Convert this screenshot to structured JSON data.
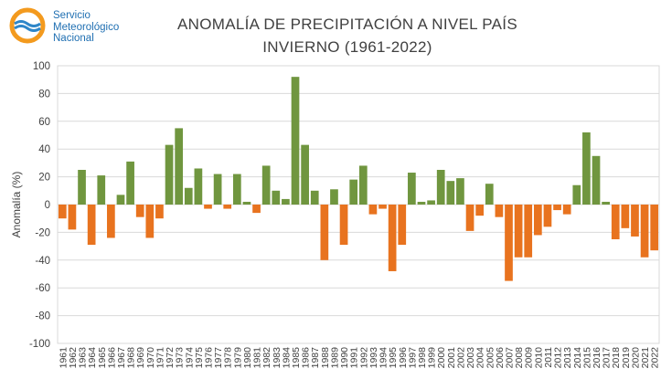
{
  "logo": {
    "line1": "Servicio",
    "line2": "Meteorológico",
    "line3": "Nacional",
    "icon": "smn-logo-icon",
    "colors": {
      "orange": "#f39a1e",
      "blue": "#2e86c8"
    }
  },
  "chart_data": {
    "type": "bar",
    "title_line1": "ANOMALÍA DE PRECIPITACIÓN A NIVEL PAÍS",
    "title_line2": "INVIERNO (1961-2022)",
    "ylabel": "Anomalía (%)",
    "xlabel": "",
    "ylim": [
      -100,
      100
    ],
    "yticks": [
      100,
      80,
      60,
      40,
      20,
      0,
      -20,
      -40,
      -60,
      -80,
      -100
    ],
    "grid": true,
    "legend": "none",
    "colors": {
      "positive": "#70963f",
      "negative": "#e8731f",
      "grid": "#d9d9d9"
    },
    "categories": [
      "1961",
      "1962",
      "1963",
      "1964",
      "1965",
      "1966",
      "1967",
      "1968",
      "1969",
      "1970",
      "1971",
      "1972",
      "1973",
      "1974",
      "1975",
      "1976",
      "1977",
      "1978",
      "1979",
      "1980",
      "1981",
      "1982",
      "1983",
      "1984",
      "1985",
      "1986",
      "1987",
      "1988",
      "1989",
      "1990",
      "1991",
      "1992",
      "1993",
      "1994",
      "1995",
      "1996",
      "1997",
      "1998",
      "1999",
      "2000",
      "2001",
      "2002",
      "2003",
      "2004",
      "2005",
      "2006",
      "2007",
      "2008",
      "2009",
      "2010",
      "2011",
      "2012",
      "2013",
      "2014",
      "2015",
      "2016",
      "2017",
      "2018",
      "2019",
      "2020",
      "2021",
      "2022"
    ],
    "values": [
      -10,
      -18,
      25,
      -29,
      21,
      -24,
      7,
      31,
      -9,
      -24,
      -10,
      43,
      55,
      12,
      26,
      -3,
      22,
      -3,
      22,
      2,
      -6,
      28,
      10,
      4,
      92,
      43,
      10,
      -40,
      11,
      -29,
      18,
      28,
      -7,
      -3,
      -48,
      -29,
      23,
      2,
      3,
      25,
      17,
      19,
      -19,
      -8,
      15,
      -9,
      -55,
      -38,
      -38,
      -22,
      -16,
      -4,
      -7,
      14,
      52,
      35,
      2,
      -25,
      -17,
      -23,
      -38,
      -33
    ]
  }
}
